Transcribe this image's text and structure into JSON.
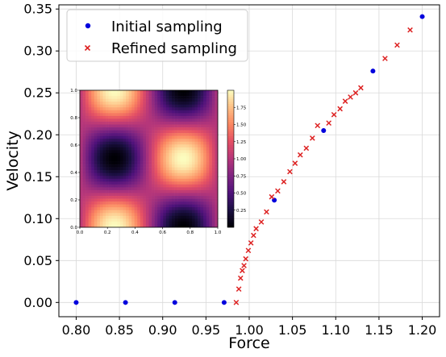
{
  "chart_data": [
    {
      "type": "scatter",
      "xlabel": "Force",
      "ylabel": "Velocity",
      "xlim": [
        0.78,
        1.22
      ],
      "ylim": [
        -0.017,
        0.355
      ],
      "xticks": [
        "0.80",
        "0.85",
        "0.90",
        "0.95",
        "1.00",
        "1.05",
        "1.10",
        "1.15",
        "1.20"
      ],
      "xtick_values": [
        0.8,
        0.85,
        0.9,
        0.95,
        1.0,
        1.05,
        1.1,
        1.15,
        1.2
      ],
      "yticks": [
        "0.00",
        "0.05",
        "0.10",
        "0.15",
        "0.20",
        "0.25",
        "0.30",
        "0.35"
      ],
      "ytick_values": [
        0.0,
        0.05,
        0.1,
        0.15,
        0.2,
        0.25,
        0.3,
        0.35
      ],
      "grid": true,
      "legend_position": "top-left",
      "series": [
        {
          "name": "Initial sampling",
          "marker": "circle",
          "color": "#0000dd",
          "x": [
            0.8,
            0.857,
            0.914,
            0.971,
            1.029,
            1.086,
            1.143,
            1.2
          ],
          "y": [
            0.0,
            0.0,
            0.0,
            0.0,
            0.122,
            0.205,
            0.276,
            0.341
          ]
        },
        {
          "name": "Refined sampling",
          "marker": "x",
          "color": "#dd2222",
          "x": [
            0.985,
            0.988,
            0.99,
            0.992,
            0.994,
            0.996,
            0.999,
            1.002,
            1.005,
            1.008,
            1.014,
            1.02,
            1.026,
            1.033,
            1.04,
            1.047,
            1.053,
            1.059,
            1.066,
            1.073,
            1.079,
            1.092,
            1.098,
            1.105,
            1.111,
            1.117,
            1.123,
            1.129,
            1.157,
            1.171,
            1.186
          ],
          "y": [
            0.0,
            0.016,
            0.029,
            0.038,
            0.044,
            0.052,
            0.062,
            0.071,
            0.08,
            0.088,
            0.096,
            0.108,
            0.126,
            0.133,
            0.144,
            0.156,
            0.166,
            0.176,
            0.184,
            0.196,
            0.211,
            0.214,
            0.224,
            0.231,
            0.24,
            0.245,
            0.25,
            0.256,
            0.291,
            0.307,
            0.325
          ]
        }
      ]
    },
    {
      "type": "heatmap",
      "colormap": "magma",
      "function": "sin^2(pi*x)+cos^2(pi*y)-style pattern, bright lobes near (0.25,1),(0.75,0.5),(0.25,0)",
      "xlim": [
        0.0,
        1.0
      ],
      "ylim": [
        0.0,
        1.0
      ],
      "xticks": [
        "0.0",
        "0.2",
        "0.4",
        "0.6",
        "0.8",
        "1.0"
      ],
      "xtick_values": [
        0.0,
        0.2,
        0.4,
        0.6,
        0.8,
        1.0
      ],
      "yticks": [
        "0.0",
        "0.2",
        "0.4",
        "0.6",
        "0.8",
        "1.0"
      ],
      "ytick_values": [
        0.0,
        0.2,
        0.4,
        0.6,
        0.8,
        1.0
      ],
      "zrange": [
        0.0,
        2.0
      ],
      "colorbar_ticks": [
        "0.25",
        "0.50",
        "0.75",
        "1.00",
        "1.25",
        "1.50",
        "1.75"
      ],
      "colorbar_tick_values": [
        0.25,
        0.5,
        0.75,
        1.0,
        1.25,
        1.5,
        1.75
      ]
    }
  ]
}
